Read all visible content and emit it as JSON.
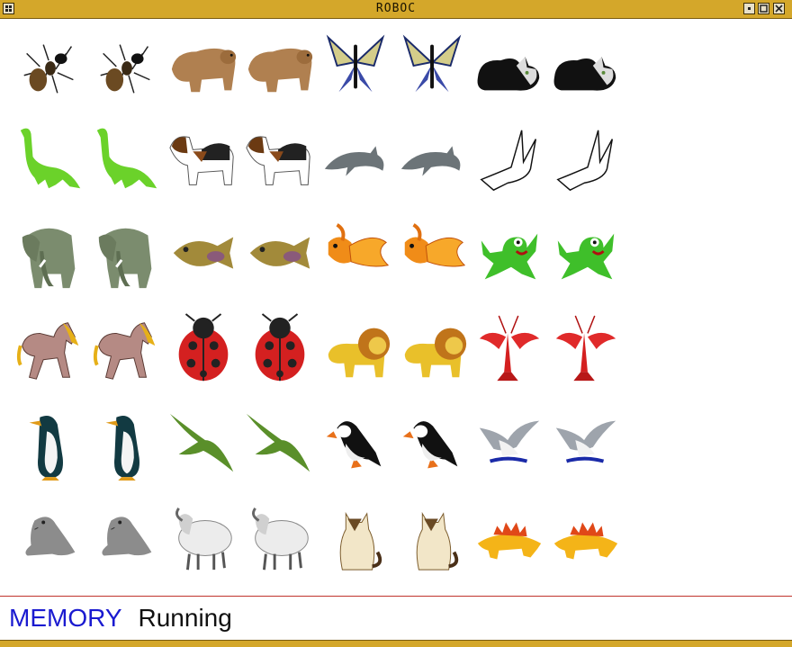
{
  "window": {
    "title": "ROBOC",
    "accent": "#d4a72a"
  },
  "board": {
    "rows": [
      [
        "ant",
        "ant",
        "bear",
        "bear",
        "butterfly",
        "butterfly",
        "cat",
        "cat"
      ],
      [
        "dinosaur",
        "dinosaur",
        "dog",
        "dog",
        "dolphin",
        "dolphin",
        "dove",
        "dove"
      ],
      [
        "elephant",
        "elephant",
        "fish",
        "fish",
        "goldfish",
        "goldfish",
        "frog",
        "frog"
      ],
      [
        "horse",
        "horse",
        "ladybug",
        "ladybug",
        "lion",
        "lion",
        "lobster",
        "lobster"
      ],
      [
        "penguin",
        "penguin",
        "pterodactyl",
        "pterodactyl",
        "puffin",
        "puffin",
        "seagull",
        "seagull"
      ],
      [
        "seal",
        "seal",
        "sheep",
        "sheep",
        "siamese-cat",
        "siamese-cat",
        "stegosaurus",
        "stegosaurus"
      ]
    ]
  },
  "status": {
    "brand": "MEMORY",
    "state": "Running",
    "brand_color": "#1a1ad0"
  }
}
